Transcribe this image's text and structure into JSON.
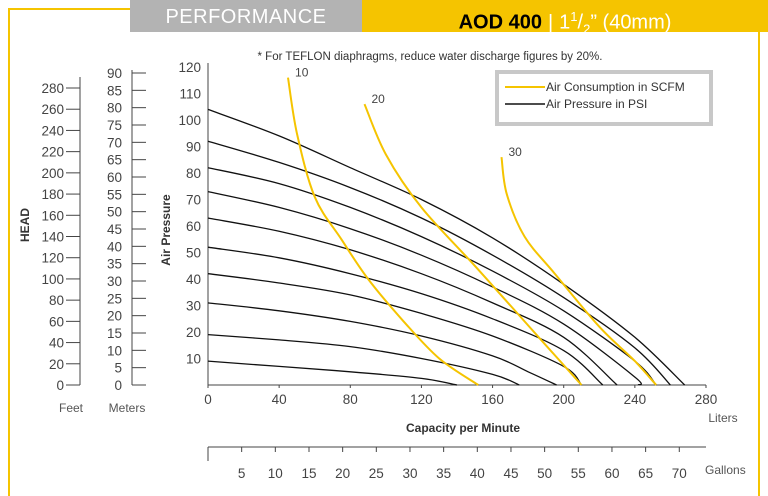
{
  "header": {
    "section_label": "PERFORMANCE",
    "model": "AOD 400",
    "size_whole": "1",
    "size_num": "1",
    "size_den": "2",
    "size_rest": "” (40mm)"
  },
  "colors": {
    "accent": "#f5c400",
    "header_grey": "#b3b3b3",
    "pressure_line": "#111111",
    "air_line": "#f5c400"
  },
  "chart_data": {
    "type": "line",
    "note": "* For TEFLON diaphragms, reduce water discharge figures by 20%.",
    "xlabel": "Capacity per Minute",
    "x_unit_label": "Liters",
    "x_ticks": [
      0,
      40,
      80,
      120,
      160,
      200,
      240,
      280
    ],
    "xlim": [
      0,
      280
    ],
    "ylabel": "Air Pressure",
    "y_ticks": [
      10,
      20,
      30,
      40,
      50,
      60,
      70,
      80,
      90,
      100,
      110,
      120
    ],
    "ylim": [
      0,
      120
    ],
    "head_label": "HEAD",
    "feet_label": "Feet",
    "feet_ticks": [
      0,
      20,
      40,
      60,
      80,
      100,
      120,
      140,
      160,
      180,
      200,
      220,
      240,
      260,
      280
    ],
    "meters_label": "Meters",
    "meters_ticks": [
      0,
      5,
      10,
      15,
      20,
      25,
      30,
      35,
      40,
      45,
      50,
      55,
      60,
      65,
      70,
      75,
      80,
      85,
      90
    ],
    "gallons_label": "Gallons",
    "gallons_ticks": [
      5,
      10,
      15,
      20,
      25,
      30,
      35,
      40,
      45,
      50,
      55,
      60,
      65,
      70
    ],
    "legend": {
      "position": "top-right",
      "entries": [
        "Air Consumption in SCFM",
        "Air Pressure in PSI"
      ]
    },
    "pressure_series": [
      {
        "points": [
          [
            0,
            9
          ],
          [
            40,
            7
          ],
          [
            80,
            5
          ],
          [
            120,
            2.5
          ],
          [
            140,
            0
          ]
        ]
      },
      {
        "points": [
          [
            0,
            19
          ],
          [
            40,
            17
          ],
          [
            80,
            14.5
          ],
          [
            120,
            10
          ],
          [
            160,
            4
          ],
          [
            175,
            0
          ]
        ]
      },
      {
        "points": [
          [
            0,
            31
          ],
          [
            40,
            28
          ],
          [
            80,
            24
          ],
          [
            120,
            18.5
          ],
          [
            160,
            11
          ],
          [
            180,
            5
          ],
          [
            196,
            0
          ]
        ]
      },
      {
        "points": [
          [
            0,
            42
          ],
          [
            40,
            38.5
          ],
          [
            80,
            34
          ],
          [
            120,
            27
          ],
          [
            160,
            18.5
          ],
          [
            200,
            7
          ],
          [
            210,
            0
          ]
        ]
      },
      {
        "points": [
          [
            0,
            52
          ],
          [
            40,
            48
          ],
          [
            80,
            42
          ],
          [
            120,
            34.5
          ],
          [
            160,
            25
          ],
          [
            200,
            13
          ],
          [
            222,
            0
          ]
        ]
      },
      {
        "points": [
          [
            0,
            63
          ],
          [
            40,
            58
          ],
          [
            80,
            51
          ],
          [
            120,
            42
          ],
          [
            160,
            31
          ],
          [
            200,
            18
          ],
          [
            230,
            0
          ]
        ]
      },
      {
        "points": [
          [
            0,
            73
          ],
          [
            40,
            67
          ],
          [
            80,
            59
          ],
          [
            120,
            49
          ],
          [
            160,
            37
          ],
          [
            200,
            23
          ],
          [
            240,
            3
          ],
          [
            242,
            0
          ]
        ]
      },
      {
        "points": [
          [
            0,
            82
          ],
          [
            40,
            76
          ],
          [
            80,
            67
          ],
          [
            120,
            56
          ],
          [
            160,
            43
          ],
          [
            200,
            28
          ],
          [
            240,
            9
          ],
          [
            252,
            0
          ]
        ]
      },
      {
        "points": [
          [
            0,
            92
          ],
          [
            40,
            84
          ],
          [
            80,
            74.5
          ],
          [
            120,
            63
          ],
          [
            160,
            49
          ],
          [
            200,
            33
          ],
          [
            240,
            14
          ],
          [
            260,
            0
          ]
        ]
      },
      {
        "points": [
          [
            0,
            104
          ],
          [
            40,
            94
          ],
          [
            80,
            82
          ],
          [
            120,
            70
          ],
          [
            160,
            55.5
          ],
          [
            200,
            38
          ],
          [
            240,
            18
          ],
          [
            268,
            0
          ]
        ]
      }
    ],
    "air_series": [
      {
        "label": "10",
        "points": [
          [
            45,
            116
          ],
          [
            50,
            95
          ],
          [
            60,
            71
          ],
          [
            75,
            55
          ],
          [
            90,
            40
          ],
          [
            110,
            24
          ],
          [
            130,
            10
          ],
          [
            152,
            0
          ]
        ]
      },
      {
        "label": "20",
        "points": [
          [
            88,
            106
          ],
          [
            100,
            87
          ],
          [
            120,
            67
          ],
          [
            150,
            45
          ],
          [
            170,
            30
          ],
          [
            190,
            15
          ],
          [
            210,
            0
          ]
        ]
      },
      {
        "label": "30",
        "points": [
          [
            165,
            86
          ],
          [
            168,
            72
          ],
          [
            178,
            56
          ],
          [
            195,
            42
          ],
          [
            220,
            22
          ],
          [
            240,
            9
          ],
          [
            252,
            0
          ]
        ]
      }
    ]
  }
}
